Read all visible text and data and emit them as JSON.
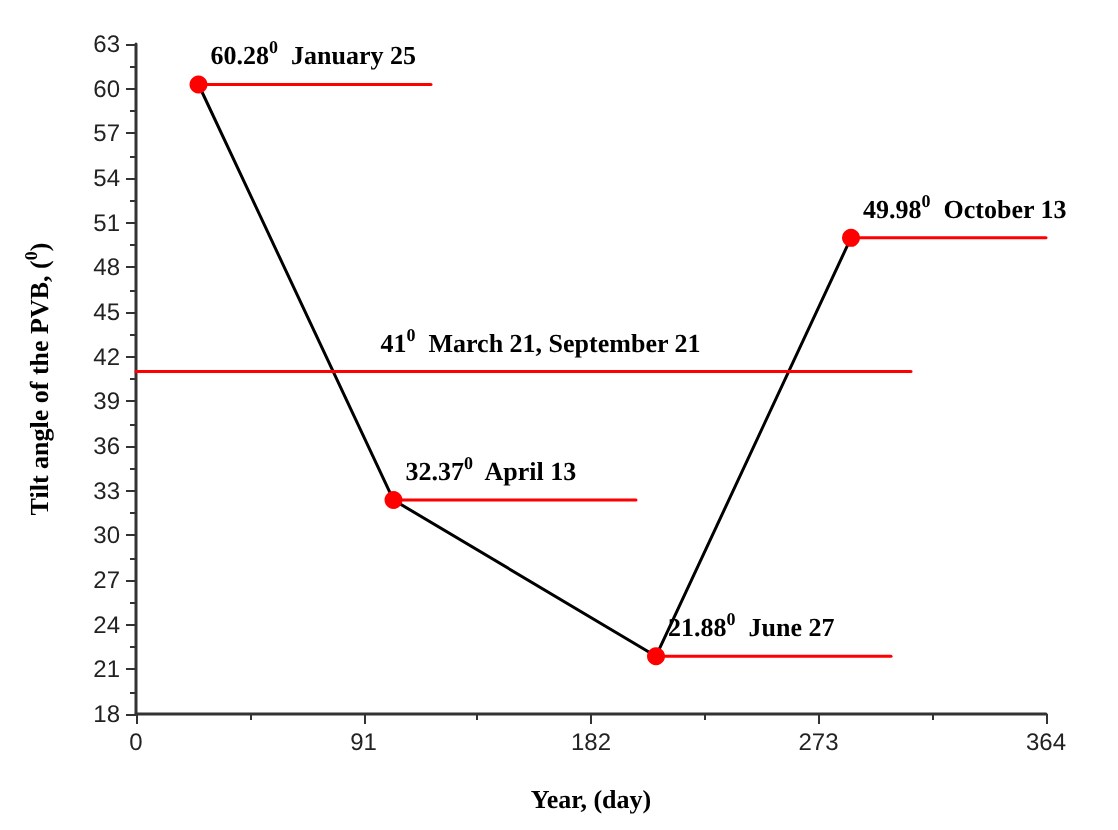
{
  "chart_data": {
    "type": "line",
    "xlabel": "Year, (day)",
    "ylabel": "Tilt angle of the PVB, ($^{0}$)",
    "xlim": [
      0,
      364
    ],
    "xticks": [
      0,
      91,
      182,
      273,
      364
    ],
    "ylim": [
      18,
      63
    ],
    "yticks": [
      18,
      21,
      24,
      27,
      30,
      33,
      36,
      39,
      42,
      45,
      48,
      51,
      54,
      57,
      60,
      63
    ],
    "grid": false,
    "series": [
      {
        "color": "#000000",
        "marker": "none",
        "x": [
          25,
          103,
          208,
          286
        ],
        "values": [
          60.28,
          32.37,
          21.88,
          49.98
        ]
      },
      {
        "type": "scatter",
        "color": "#ff0000",
        "marker": "circle",
        "x": [
          25,
          103,
          208,
          286
        ],
        "values": [
          60.28,
          32.37,
          21.88,
          49.98
        ]
      },
      {
        "type": "line",
        "color": "#ff0000",
        "marker": "none",
        "x": [
          25,
          118
        ],
        "values": [
          60.28,
          60.28
        ]
      },
      {
        "type": "line",
        "color": "#ff0000",
        "marker": "none",
        "x": [
          103,
          200
        ],
        "values": [
          32.37,
          32.37
        ]
      },
      {
        "type": "line",
        "color": "#ff0000",
        "marker": "none",
        "x": [
          208,
          302
        ],
        "values": [
          21.88,
          21.88
        ]
      },
      {
        "type": "line",
        "color": "#ff0000",
        "marker": "none",
        "x": [
          286,
          364
        ],
        "values": [
          49.98,
          49.98
        ]
      },
      {
        "type": "line",
        "color": "#ff0000",
        "marker": "none",
        "x": [
          0,
          310
        ],
        "values": [
          41,
          41
        ]
      }
    ],
    "annotations": [
      {
        "text": "60.28$^{0}$  January 25",
        "x": 25,
        "y": 60.28
      },
      {
        "text": "32.37$^{0}$  April 13",
        "x": 103,
        "y": 32.37
      },
      {
        "text": "21.88$^{0}$  June 27",
        "x": 208,
        "y": 21.88
      },
      {
        "text": "49.98$^{0}$  October 13",
        "x": 286,
        "y": 49.98
      },
      {
        "text": "41$^{0}$  March 21, September 21",
        "x": 93,
        "y": 41
      }
    ]
  }
}
